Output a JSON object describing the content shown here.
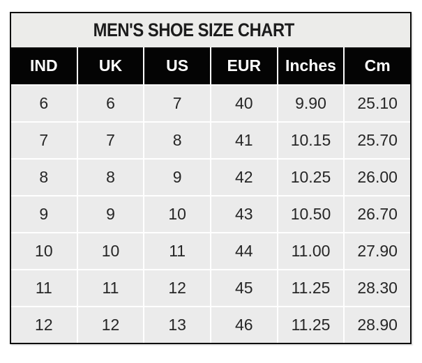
{
  "title": "MEN'S SHOE SIZE CHART",
  "chart_data": {
    "type": "table",
    "title": "MEN'S SHOE SIZE CHART",
    "columns": [
      "IND",
      "UK",
      "US",
      "EUR",
      "Inches",
      "Cm"
    ],
    "rows": [
      [
        "6",
        "6",
        "7",
        "40",
        "9.90",
        "25.10"
      ],
      [
        "7",
        "7",
        "8",
        "41",
        "10.15",
        "25.70"
      ],
      [
        "8",
        "8",
        "9",
        "42",
        "10.25",
        "26.00"
      ],
      [
        "9",
        "9",
        "10",
        "43",
        "10.50",
        "26.70"
      ],
      [
        "10",
        "10",
        "11",
        "44",
        "11.00",
        "27.90"
      ],
      [
        "11",
        "11",
        "12",
        "45",
        "11.25",
        "28.30"
      ],
      [
        "12",
        "12",
        "13",
        "46",
        "11.25",
        "28.90"
      ]
    ]
  },
  "colors": {
    "page_bg": "#ffffff",
    "table_border": "#0a0a0a",
    "title_bg": "#ececea",
    "title_text": "#1c1c1c",
    "header_bg": "#040404",
    "header_text": "#ffffff",
    "cell_bg": "#ebebeb",
    "cell_text": "#262626",
    "grid_line": "#ffffff"
  }
}
